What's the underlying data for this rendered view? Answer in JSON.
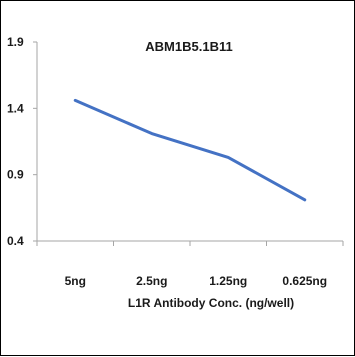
{
  "chart_data": {
    "type": "line",
    "title": "ABM1B5.1B11",
    "xlabel": "L1R Antibody Conc. (ng/well)",
    "ylabel": "",
    "categories": [
      "5ng",
      "2.5ng",
      "1.25ng",
      "0.625ng"
    ],
    "ylim": [
      0.4,
      1.9
    ],
    "yticks": [
      "0.4",
      "0.9",
      "1.4",
      "1.9"
    ],
    "series": [
      {
        "values": [
          1.46,
          1.21,
          1.03,
          0.71
        ]
      }
    ],
    "colors": {
      "line": "#4472c4",
      "axis": "#a6a6a6"
    },
    "grid": false,
    "legend": "none"
  }
}
